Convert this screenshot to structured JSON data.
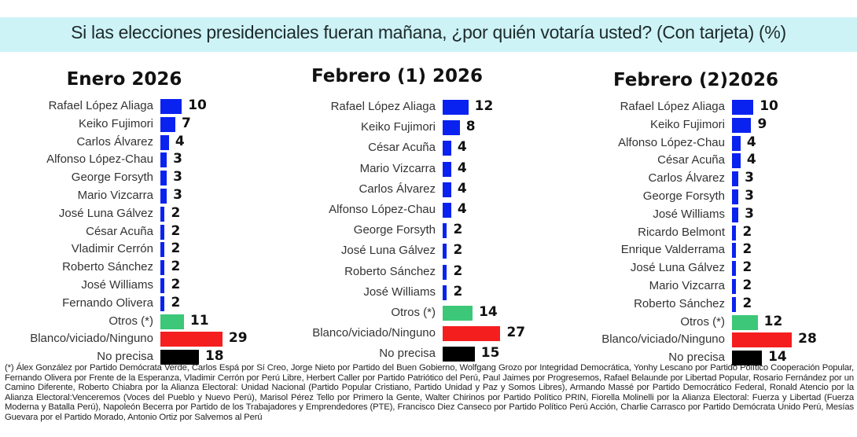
{
  "title": "Si las elecciones presidenciales fueran mañana, ¿por quién votaría usted? (Con tarjeta) (%)",
  "colors": {
    "header_bg": "#cdf3f7",
    "candidate": "#0a22f0",
    "otros": "#3cc878",
    "blanco": "#f51e1e",
    "no_precisa": "#000000"
  },
  "chart_data": [
    {
      "type": "bar",
      "orientation": "horizontal",
      "title": "Enero 2026",
      "categories": [
        "Rafael López Aliaga",
        "Keiko Fujimori",
        "Carlos Álvarez",
        "Alfonso López-Chau",
        "George Forsyth",
        "Mario Vizcarra",
        "José Luna Gálvez",
        "César Acuña",
        "Vladimir Cerrón",
        "Roberto Sánchez",
        "José Williams",
        "Fernando Olivera",
        "Otros (*)",
        "Blanco/viciado/Ninguno",
        "No precisa"
      ],
      "values": [
        10,
        7,
        4,
        3,
        3,
        3,
        2,
        2,
        2,
        2,
        2,
        2,
        11,
        29,
        18
      ]
    },
    {
      "type": "bar",
      "orientation": "horizontal",
      "title": "Febrero (1) 2026",
      "categories": [
        "Rafael López Aliaga",
        "Keiko Fujimori",
        "César Acuña",
        "Mario Vizcarra",
        "Carlos Álvarez",
        "Alfonso López-Chau",
        "George Forsyth",
        "José Luna Gálvez",
        "Roberto Sánchez",
        "José Williams",
        "Otros (*)",
        "Blanco/viciado/Ninguno",
        "No precisa"
      ],
      "values": [
        12,
        8,
        4,
        4,
        4,
        4,
        2,
        2,
        2,
        2,
        14,
        27,
        15
      ]
    },
    {
      "type": "bar",
      "orientation": "horizontal",
      "title": "Febrero (2)2026",
      "categories": [
        "Rafael López Aliaga",
        "Keiko Fujimori",
        "Alfonso López-Chau",
        "César Acuña",
        "Carlos Álvarez",
        "George Forsyth",
        "José Williams",
        "Ricardo Belmont",
        "Enrique Valderrama",
        "José Luna Gálvez",
        "Mario Vizcarra",
        "Roberto Sánchez",
        "Otros (*)",
        "Blanco/viciado/Ninguno",
        "No precisa"
      ],
      "values": [
        10,
        9,
        4,
        4,
        3,
        3,
        3,
        2,
        2,
        2,
        2,
        2,
        12,
        28,
        14
      ]
    }
  ],
  "footnote": "(*) Álex González por Partido Demócrata Verde, Carlos Espá por Sí Creo, Jorge Nieto por Partido del Buen Gobierno, Wolfgang Grozo por Integridad Democrática, Yonhy Lescano por Partido Político Cooperación Popular, Fernando Olivera por Frente de la Esperanza, Vladimir Cerrón por Perú Libre, Herbert Caller por Partido Patriótico del Perú, Paul Jaimes por Progresemos, Rafael Belaunde por Libertad Popular, Rosario Fernández por un Camino Diferente, Roberto Chiabra por la Alianza Electoral: Unidad Nacional (Partido Popular Cristiano, Partido Unidad y Paz y Somos Libres), Armando Massé por Partido Democrático Federal, Ronald Atencio por la Alianza Electoral:Venceremos (Voces del Pueblo y Nuevo Perú), Marisol Pérez Tello por Primero la Gente, Walter Chirinos por Partido Político PRIN, Fiorella Molinelli por la Alianza Electoral: Fuerza y Libertad (Fuerza Moderna y Batalla Perú), Napoleón Becerra por Partido de los Trabajadores y Emprendedores (PTE), Francisco Diez Canseco por Partido Político Perú Acción, Charlie Carrasco por Partido Demócrata Unido Perú, Mesías Guevara por el Partido Morado, Antonio Ortiz por Salvemos al Perú"
}
